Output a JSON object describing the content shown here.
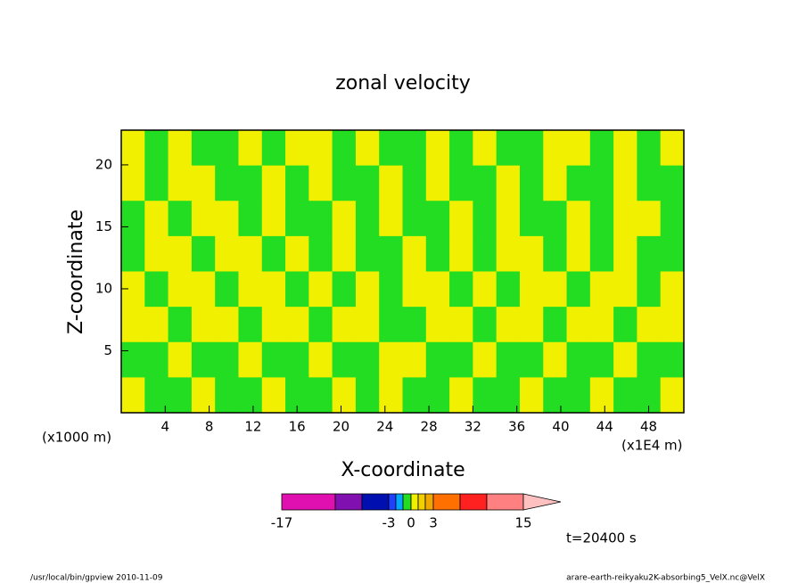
{
  "chart_data": {
    "type": "contour",
    "title": "zonal velocity",
    "xlabel": "X-coordinate",
    "ylabel": "Z-coordinate",
    "x_unit_left": "(x1000 m)",
    "x_unit_right": "(x1E4 m)",
    "time_label": "t=20400 s",
    "footer_left": "/usr/local/bin/gpview   2010-11-09",
    "footer_right": "arare-earth-reikyaku2K-absorbing5_VelX.nc@VelX",
    "xlim": [
      0,
      51.2
    ],
    "ylim": [
      0,
      22.8
    ],
    "xticks": [
      4,
      8,
      12,
      16,
      20,
      24,
      28,
      32,
      36,
      40,
      44,
      48
    ],
    "yticks": [
      5,
      10,
      15,
      20
    ],
    "field": [
      [
        0.5,
        -0.5,
        0.5,
        -0.5,
        -0.5,
        0.5,
        -0.5,
        0.5,
        0.5,
        -0.5,
        0.5,
        -0.5,
        -0.5,
        0.5,
        -0.5,
        0.5,
        -0.5,
        -0.5,
        0.5,
        0.5,
        -0.5,
        0.5,
        -0.5,
        0.5
      ],
      [
        0.5,
        -0.5,
        0.5,
        0.5,
        -0.5,
        -0.5,
        0.5,
        -0.5,
        0.5,
        -0.5,
        -0.5,
        0.5,
        -0.5,
        0.5,
        -0.5,
        -0.5,
        0.5,
        -0.5,
        0.5,
        -0.5,
        -0.5,
        0.5,
        -0.5,
        -0.5
      ],
      [
        -0.5,
        0.5,
        -0.5,
        0.5,
        0.5,
        -0.5,
        0.5,
        -0.5,
        -0.5,
        0.5,
        -0.5,
        0.5,
        -0.5,
        -0.5,
        0.5,
        -0.5,
        0.5,
        -0.5,
        -0.5,
        0.5,
        -0.5,
        0.5,
        0.5,
        -0.5
      ],
      [
        -0.5,
        0.5,
        0.5,
        -0.5,
        0.5,
        0.5,
        -0.5,
        0.5,
        -0.5,
        0.5,
        -0.5,
        -0.5,
        0.5,
        -0.5,
        0.5,
        -0.5,
        0.5,
        0.5,
        -0.5,
        0.5,
        -0.5,
        0.5,
        -0.5,
        -0.5
      ],
      [
        0.5,
        -0.5,
        0.5,
        0.5,
        -0.5,
        0.5,
        0.5,
        -0.5,
        0.5,
        -0.5,
        0.5,
        -0.5,
        0.5,
        0.5,
        -0.5,
        0.5,
        -0.5,
        0.5,
        0.5,
        -0.5,
        0.5,
        0.5,
        -0.5,
        0.5
      ],
      [
        0.5,
        0.5,
        -0.5,
        0.5,
        0.5,
        -0.5,
        0.5,
        0.5,
        -0.5,
        0.5,
        0.5,
        -0.5,
        -0.5,
        0.5,
        0.5,
        -0.5,
        0.5,
        0.5,
        -0.5,
        0.5,
        0.5,
        -0.5,
        0.5,
        0.5
      ],
      [
        -0.5,
        -0.5,
        0.5,
        -0.5,
        -0.5,
        0.5,
        -0.5,
        -0.5,
        0.5,
        -0.5,
        -0.5,
        0.5,
        0.5,
        -0.5,
        -0.5,
        0.5,
        -0.5,
        -0.5,
        0.5,
        -0.5,
        -0.5,
        0.5,
        -0.5,
        -0.5
      ],
      [
        0.5,
        -0.5,
        -0.5,
        0.5,
        -0.5,
        -0.5,
        0.5,
        -0.5,
        -0.5,
        0.5,
        -0.5,
        0.5,
        -0.5,
        -0.5,
        0.5,
        -0.5,
        -0.5,
        0.5,
        -0.5,
        -0.5,
        0.5,
        -0.5,
        -0.5,
        0.5
      ]
    ],
    "levels": [
      -17,
      -12,
      -7,
      -3,
      -2,
      -1,
      0,
      1,
      2,
      3,
      7,
      11,
      15
    ],
    "colors": [
      "#e010b0",
      "#8010b0",
      "#0010b0",
      "#2040ff",
      "#00a8ff",
      "#22dd22",
      "#f0f000",
      "#f0d000",
      "#f0a800",
      "#ff7000",
      "#ff2020",
      "#ff8080"
    ],
    "extend_color": "#ffc0c0",
    "colorbar_ticks": [
      -17,
      -3,
      0,
      3,
      15
    ]
  }
}
